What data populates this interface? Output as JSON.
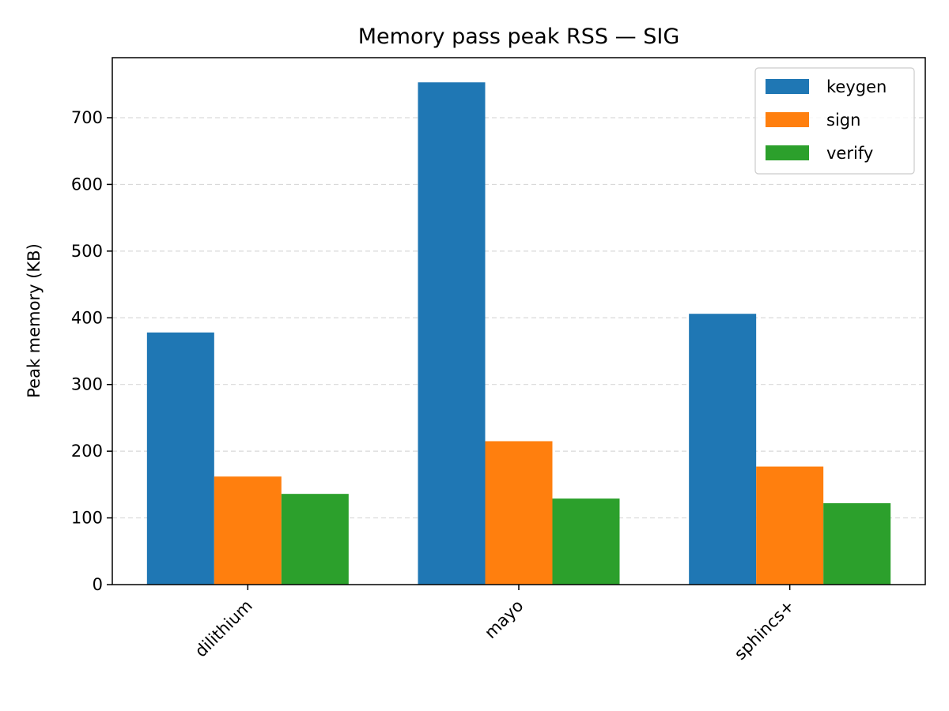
{
  "chart_data": {
    "type": "bar",
    "title": "Memory pass peak RSS — SIG",
    "xlabel": "",
    "ylabel": "Peak memory (KB)",
    "categories": [
      "dilithium",
      "mayo",
      "sphincs+"
    ],
    "series": [
      {
        "name": "keygen",
        "color": "#1f77b4",
        "values": [
          378,
          753,
          406
        ]
      },
      {
        "name": "sign",
        "color": "#ff7f0e",
        "values": [
          162,
          215,
          177
        ]
      },
      {
        "name": "verify",
        "color": "#2ca02c",
        "values": [
          136,
          129,
          122
        ]
      }
    ],
    "ylim": [
      0,
      790
    ],
    "yticks": [
      0,
      100,
      200,
      300,
      400,
      500,
      600,
      700
    ],
    "grid": "horizontal dashed",
    "legend": "top-right"
  }
}
